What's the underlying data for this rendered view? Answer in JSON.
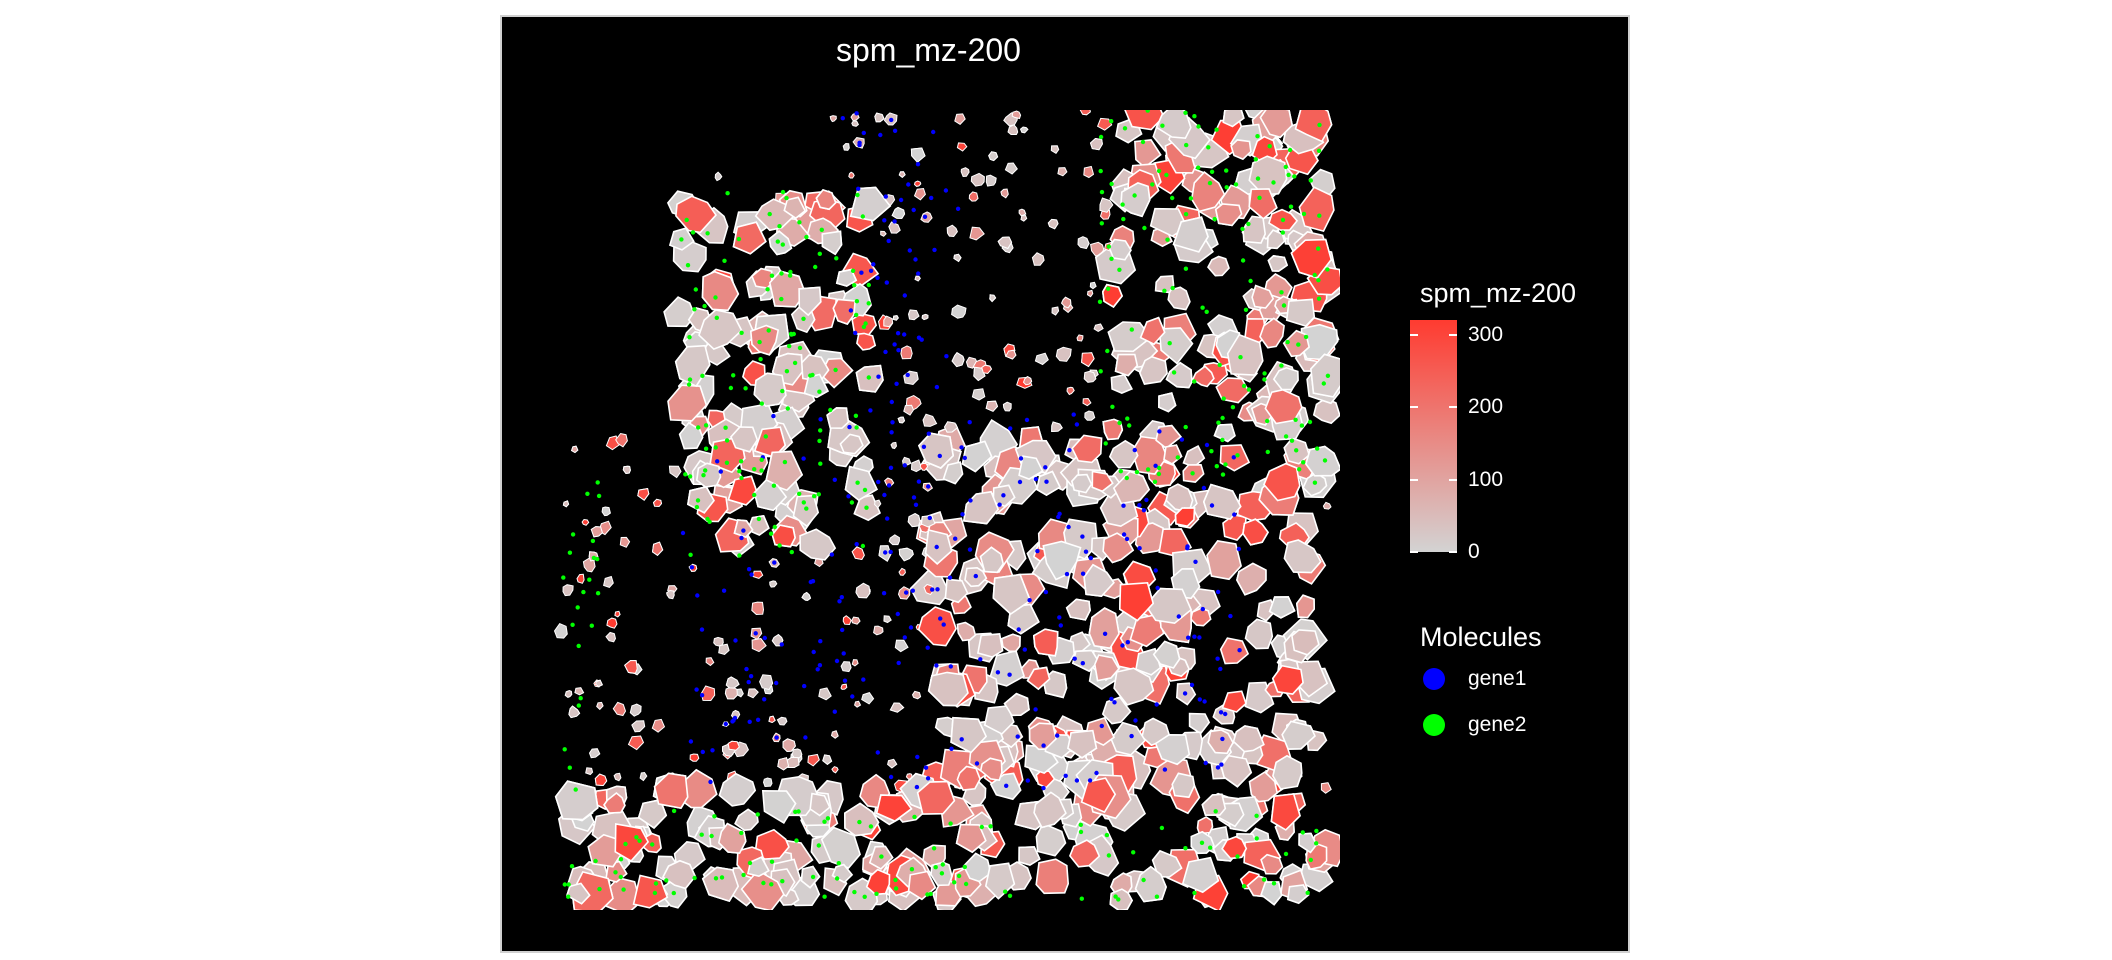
{
  "chart_data": {
    "type": "scatter",
    "title": "spm_mz-200",
    "xlabel": "",
    "ylabel": "",
    "grid": false,
    "background": "#000000",
    "color_scale": {
      "title": "spm_mz-200",
      "min": 0,
      "max": 320,
      "low_color": "#d3d3d3",
      "high_color": "#ff3b30",
      "ticks": [
        0,
        100,
        200,
        300
      ]
    },
    "molecule_legend": {
      "title": "Molecules",
      "entries": [
        {
          "name": "gene1",
          "color": "#0000ff"
        },
        {
          "name": "gene2",
          "color": "#00ff00"
        }
      ]
    },
    "cell_outline_color": "#ffffff",
    "legend_position": "right"
  }
}
